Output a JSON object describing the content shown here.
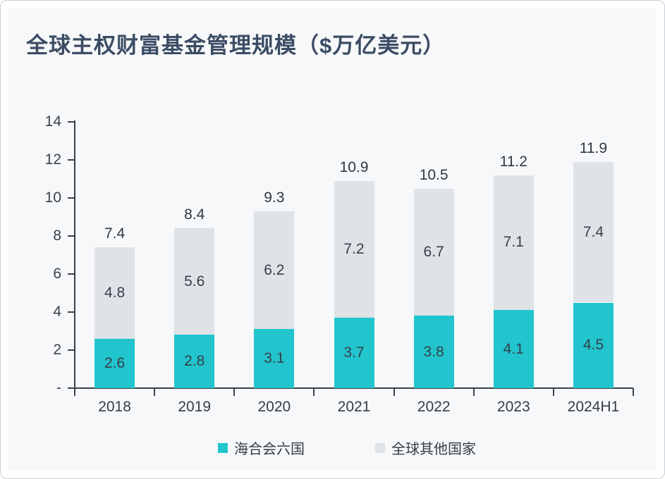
{
  "page": {
    "title": "全球主权财富基金管理规模（$万亿美元）"
  },
  "chart_data": {
    "type": "bar",
    "stacked": true,
    "title": "全球主权财富基金管理规模（$万亿美元）",
    "categories": [
      "2018",
      "2019",
      "2020",
      "2021",
      "2022",
      "2023",
      "2024H1"
    ],
    "series": [
      {
        "name": "海合会六国",
        "color": "#22c5cd",
        "values": [
          2.6,
          2.8,
          3.1,
          3.7,
          3.8,
          4.1,
          4.5
        ]
      },
      {
        "name": "全球其他国家",
        "color": "#dfe2e6",
        "values": [
          4.8,
          5.6,
          6.2,
          7.2,
          6.7,
          7.1,
          7.4
        ]
      }
    ],
    "totals": [
      7.4,
      8.4,
      9.3,
      10.9,
      10.5,
      11.2,
      11.9
    ],
    "xlabel": "",
    "ylabel": "",
    "ylim": [
      0,
      14
    ],
    "y_tick_values": [
      0,
      2,
      4,
      6,
      8,
      10,
      12,
      14
    ],
    "y_tick_labels": [
      "-",
      "2",
      "4",
      "6",
      "8",
      "10",
      "12",
      "14"
    ],
    "grid": false,
    "legend_position": "bottom",
    "value_labels": "inside-segments-and-total-on-top"
  },
  "colors": {
    "bar_teal": "#22c5cd",
    "bar_gray": "#dfe2e6",
    "title_text": "#3b4c64",
    "axis": "#3b424a",
    "label_text": "#35404c",
    "panel_background": "#f7f8f9",
    "frame_background": "#ffffff",
    "frame_border": "#c9ced3"
  }
}
